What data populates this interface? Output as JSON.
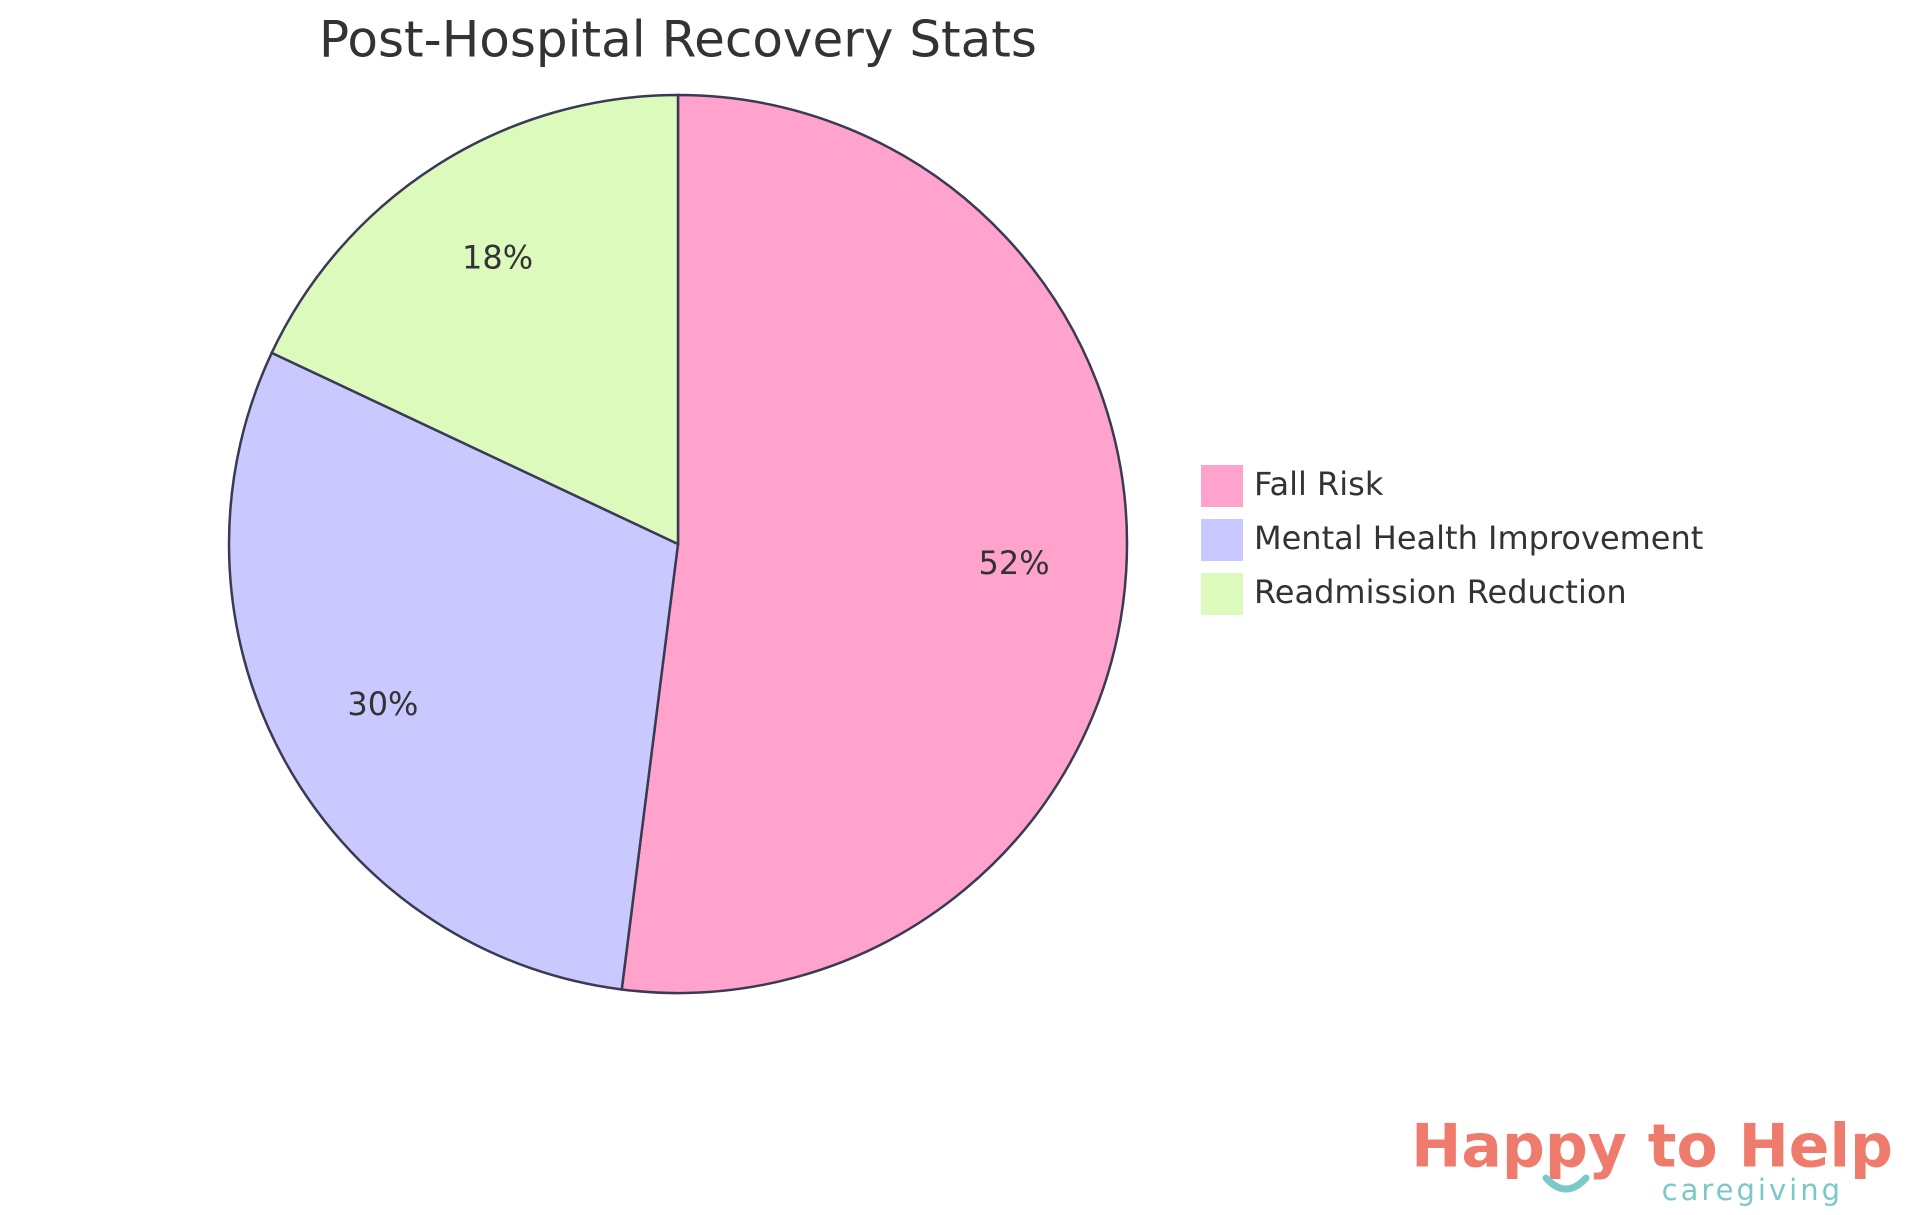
{
  "chart_data": {
    "type": "pie",
    "title": "Post-Hospital Recovery Stats",
    "categories": [
      "Fall Risk",
      "Mental Health Improvement",
      "Readmission Reduction"
    ],
    "values": [
      52,
      30,
      18
    ],
    "value_labels": [
      "52%",
      "30%",
      "18%"
    ],
    "colors": [
      "#ffa3cc",
      "#c9c9ff",
      "#dbfabb"
    ],
    "legend": "right"
  },
  "logo": {
    "name": "Happy to Help",
    "tagline": "caregiving"
  }
}
